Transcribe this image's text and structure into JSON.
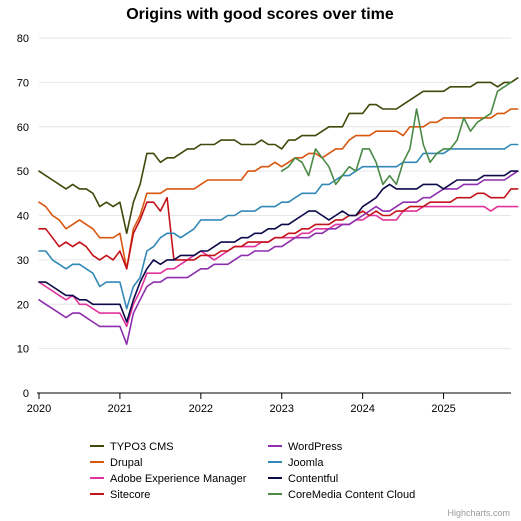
{
  "chart_data": {
    "type": "line",
    "title": "Origins with good scores over time",
    "xlabel": "",
    "ylabel": "",
    "xlim": [
      "2020-01",
      "2025-11"
    ],
    "ylim": [
      0,
      80
    ],
    "yticks": [
      0,
      10,
      20,
      30,
      40,
      50,
      60,
      70,
      80
    ],
    "xticks": [
      "2020",
      "2021",
      "2022",
      "2023",
      "2024",
      "2025"
    ],
    "grid": "horizontal",
    "legend_position": "bottom",
    "credits": "Highcharts.com",
    "colors": {
      "grid": "#e6e6e6",
      "axis": "#000000",
      "background": "#ffffff"
    },
    "series": [
      {
        "name": "TYPO3 CMS",
        "color": "#3d4a0a",
        "start": "2020-01",
        "values": [
          50,
          49,
          48,
          47,
          46,
          47,
          46,
          46,
          45,
          42,
          43,
          42,
          43,
          36,
          43,
          47,
          54,
          54,
          52,
          53,
          53,
          54,
          55,
          55,
          56,
          56,
          56,
          57,
          57,
          57,
          56,
          56,
          56,
          57,
          56,
          56,
          55,
          57,
          57,
          58,
          58,
          58,
          59,
          60,
          60,
          60,
          63,
          63,
          63,
          65,
          65,
          64,
          64,
          64,
          65,
          66,
          67,
          68,
          68,
          68,
          68,
          69,
          69,
          69,
          69,
          70,
          70,
          70,
          69,
          70,
          70,
          71
        ]
      },
      {
        "name": "Drupal",
        "color": "#d9560f",
        "start": "2020-01",
        "values": [
          43,
          42,
          40,
          39,
          37,
          38,
          39,
          38,
          37,
          35,
          35,
          35,
          36,
          28,
          37,
          40,
          45,
          45,
          45,
          46,
          46,
          46,
          46,
          46,
          47,
          48,
          48,
          48,
          48,
          48,
          48,
          50,
          50,
          51,
          51,
          52,
          51,
          52,
          53,
          53,
          54,
          54,
          53,
          54,
          55,
          55,
          57,
          58,
          58,
          58,
          59,
          59,
          59,
          59,
          58,
          60,
          60,
          60,
          61,
          61,
          62,
          62,
          62,
          62,
          62,
          62,
          62,
          62,
          63,
          63,
          64,
          64
        ]
      },
      {
        "name": "Adobe Experience Manager",
        "color": "#e0349c",
        "start": "2020-01",
        "values": [
          25,
          24,
          23,
          22,
          21,
          22,
          20,
          20,
          19,
          18,
          18,
          18,
          18,
          15,
          20,
          23,
          27,
          27,
          27,
          28,
          28,
          29,
          30,
          31,
          32,
          31,
          30,
          31,
          32,
          33,
          33,
          33,
          33,
          34,
          34,
          35,
          35,
          35,
          35,
          36,
          36,
          37,
          37,
          37,
          38,
          38,
          38,
          39,
          39,
          40,
          40,
          39,
          39,
          39,
          41,
          41,
          41,
          42,
          42,
          42,
          42,
          42,
          42,
          42,
          42,
          42,
          42,
          41,
          42,
          42,
          42,
          42
        ]
      },
      {
        "name": "Sitecore",
        "color": "#c4121a",
        "start": "2020-01",
        "values": [
          37,
          37,
          35,
          33,
          34,
          33,
          34,
          33,
          31,
          30,
          31,
          30,
          32,
          28,
          36,
          39,
          43,
          43,
          41,
          44,
          30,
          30,
          30,
          30,
          31,
          31,
          31,
          32,
          32,
          33,
          33,
          34,
          34,
          34,
          34,
          35,
          35,
          36,
          36,
          37,
          37,
          38,
          38,
          38,
          39,
          39,
          40,
          40,
          41,
          40,
          41,
          40,
          40,
          41,
          41,
          42,
          42,
          42,
          43,
          43,
          43,
          43,
          44,
          44,
          44,
          45,
          45,
          44,
          44,
          44,
          46,
          46
        ]
      },
      {
        "name": "WordPress",
        "color": "#8e2fae",
        "start": "2020-01",
        "values": [
          21,
          20,
          19,
          18,
          17,
          18,
          18,
          17,
          16,
          15,
          15,
          15,
          15,
          11,
          18,
          21,
          24,
          25,
          25,
          26,
          26,
          26,
          26,
          27,
          28,
          28,
          29,
          29,
          29,
          30,
          31,
          31,
          32,
          32,
          32,
          33,
          33,
          34,
          35,
          35,
          35,
          36,
          36,
          37,
          37,
          38,
          38,
          39,
          40,
          41,
          42,
          41,
          41,
          42,
          43,
          43,
          43,
          44,
          44,
          45,
          46,
          46,
          46,
          47,
          47,
          47,
          48,
          48,
          48,
          48,
          49,
          50
        ]
      },
      {
        "name": "Joomla",
        "color": "#3289b8",
        "start": "2020-01",
        "values": [
          32,
          32,
          30,
          29,
          28,
          29,
          29,
          28,
          27,
          24,
          25,
          25,
          25,
          19,
          24,
          26,
          32,
          33,
          35,
          36,
          36,
          35,
          36,
          37,
          39,
          39,
          39,
          39,
          40,
          40,
          41,
          41,
          41,
          42,
          42,
          42,
          43,
          43,
          44,
          45,
          45,
          45,
          47,
          47,
          48,
          49,
          49,
          50,
          51,
          51,
          51,
          51,
          51,
          51,
          52,
          52,
          52,
          54,
          54,
          54,
          54,
          55,
          55,
          55,
          55,
          55,
          55,
          55,
          55,
          55,
          56,
          56
        ]
      },
      {
        "name": "Contentful",
        "color": "#0d0a4a",
        "start": "2020-01",
        "values": [
          25,
          25,
          24,
          23,
          22,
          22,
          21,
          21,
          20,
          20,
          20,
          20,
          20,
          16,
          21,
          25,
          28,
          30,
          29,
          30,
          30,
          31,
          31,
          31,
          32,
          32,
          33,
          34,
          34,
          34,
          35,
          35,
          36,
          36,
          37,
          37,
          38,
          38,
          39,
          40,
          41,
          41,
          40,
          39,
          40,
          41,
          40,
          40,
          42,
          43,
          44,
          46,
          47,
          46,
          46,
          46,
          46,
          47,
          47,
          47,
          46,
          47,
          48,
          48,
          48,
          48,
          49,
          49,
          49,
          49,
          50,
          50
        ]
      },
      {
        "name": "CoreMedia Content Cloud",
        "color": "#4a8a45",
        "start": "2023-01",
        "values": [
          50,
          51,
          53,
          52,
          49,
          55,
          53,
          51,
          47,
          49,
          51,
          50,
          55,
          55,
          52,
          47,
          49,
          47,
          52,
          55,
          64,
          56,
          52,
          54,
          55,
          55,
          57,
          62,
          59,
          61,
          62,
          63,
          68,
          69,
          70
        ]
      }
    ]
  }
}
